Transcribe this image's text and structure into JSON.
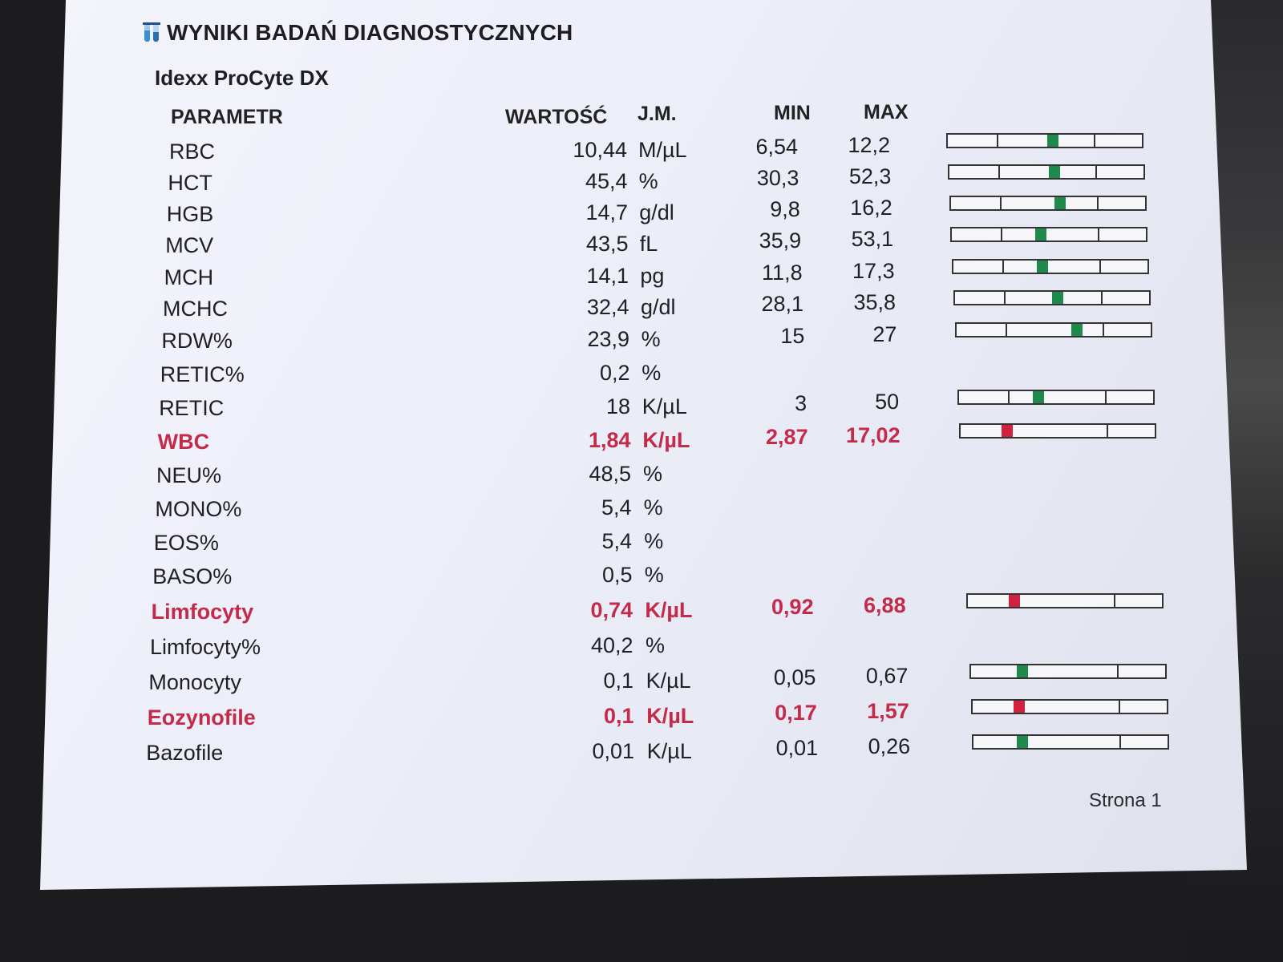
{
  "document": {
    "title": "WYNIKI BADAŃ DIAGNOSTYCZNYCH",
    "analyzer": "Idexx ProCyte DX",
    "page_label": "Strona 1"
  },
  "columns": {
    "parameter": "PARAMETR",
    "value": "WARTOŚĆ",
    "unit": "J.M.",
    "min": "MIN",
    "max": "MAX"
  },
  "colors": {
    "normal_marker": "#1f8a4b",
    "alert_marker": "#d0223e",
    "alert_text": "#c42a4a"
  },
  "results": [
    {
      "name": "RBC",
      "value": "10,44",
      "unit": "M/µL",
      "min": "6,54",
      "max": "12,2",
      "alert": false,
      "level": 0.58
    },
    {
      "name": "HCT",
      "value": "45,4",
      "unit": "%",
      "min": "30,3",
      "max": "52,3",
      "alert": false,
      "level": 0.58
    },
    {
      "name": "HGB",
      "value": "14,7",
      "unit": "g/dl",
      "min": "9,8",
      "max": "16,2",
      "alert": false,
      "level": 0.62
    },
    {
      "name": "MCV",
      "value": "43,5",
      "unit": "fL",
      "min": "35,9",
      "max": "53,1",
      "alert": false,
      "level": 0.42
    },
    {
      "name": "MCH",
      "value": "14,1",
      "unit": "pg",
      "min": "11,8",
      "max": "17,3",
      "alert": false,
      "level": 0.42
    },
    {
      "name": "MCHC",
      "value": "32,4",
      "unit": "g/dl",
      "min": "28,1",
      "max": "35,8",
      "alert": false,
      "level": 0.56
    },
    {
      "name": "RDW%",
      "value": "23,9",
      "unit": "%",
      "min": "15",
      "max": "27",
      "alert": false,
      "level": 0.74
    },
    {
      "name": "RETIC%",
      "value": "0,2",
      "unit": "%",
      "min": "",
      "max": "",
      "alert": false,
      "level": null
    },
    {
      "name": "RETIC",
      "value": "18",
      "unit": "K/µL",
      "min": "3",
      "max": "50",
      "alert": false,
      "level": 0.32
    },
    {
      "name": "WBC",
      "value": "1,84",
      "unit": "K/µL",
      "min": "2,87",
      "max": "17,02",
      "alert": true,
      "level": -0.02
    },
    {
      "name": "NEU%",
      "value": "48,5",
      "unit": "%",
      "min": "",
      "max": "",
      "alert": false,
      "level": null
    },
    {
      "name": "MONO%",
      "value": "5,4",
      "unit": "%",
      "min": "",
      "max": "",
      "alert": false,
      "level": null
    },
    {
      "name": "EOS%",
      "value": "5,4",
      "unit": "%",
      "min": "",
      "max": "",
      "alert": false,
      "level": null
    },
    {
      "name": "BASO%",
      "value": "0,5",
      "unit": "%",
      "min": "",
      "max": "",
      "alert": false,
      "level": null
    },
    {
      "name": "Limfocyty",
      "value": "0,74",
      "unit": "K/µL",
      "min": "0,92",
      "max": "6,88",
      "alert": true,
      "level": -0.02
    },
    {
      "name": "Limfocyty%",
      "value": "40,2",
      "unit": "%",
      "min": "",
      "max": "",
      "alert": false,
      "level": null
    },
    {
      "name": "Monocyty",
      "value": "0,1",
      "unit": "K/µL",
      "min": "0,05",
      "max": "0,67",
      "alert": false,
      "level": 0.03
    },
    {
      "name": "Eozynofile",
      "value": "0,1",
      "unit": "K/µL",
      "min": "0,17",
      "max": "1,57",
      "alert": true,
      "level": -0.02
    },
    {
      "name": "Bazofile",
      "value": "0,01",
      "unit": "K/µL",
      "min": "0,01",
      "max": "0,26",
      "alert": false,
      "level": 0.0
    }
  ]
}
